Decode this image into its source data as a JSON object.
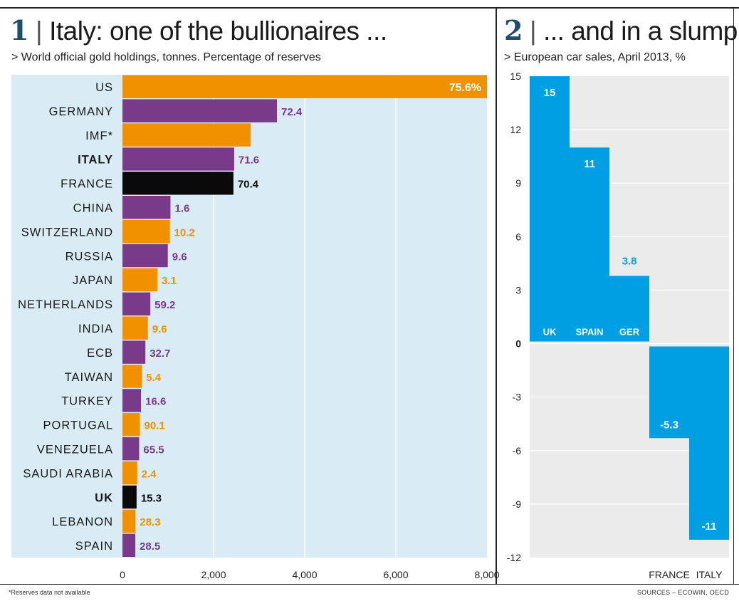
{
  "chart_data": [
    {
      "type": "bar",
      "orientation": "horizontal",
      "number": "1",
      "title": "Italy: one of the bullionaires ...",
      "subtitle": "> World official gold holdings, tonnes. Percentage of reserves",
      "categories": [
        "US",
        "GERMANY",
        "IMF*",
        "ITALY",
        "FRANCE",
        "CHINA",
        "SWITZERLAND",
        "RUSSIA",
        "JAPAN",
        "NETHERLANDS",
        "INDIA",
        "ECB",
        "TAIWAN",
        "TURKEY",
        "PORTUGAL",
        "VENEZUELA",
        "SAUDI ARABIA",
        "UK",
        "LEBANON",
        "SPAIN"
      ],
      "values": [
        8134,
        3391,
        2814,
        2452,
        2435,
        1054,
        1040,
        996,
        765,
        612,
        558,
        503,
        424,
        408,
        383,
        366,
        323,
        310,
        287,
        282
      ],
      "labels": [
        "75.6%",
        "72.4",
        "",
        "71.6",
        "70.4",
        "1.6",
        "10.2",
        "9.6",
        "3.1",
        "59.2",
        "9.6",
        "32.7",
        "5.4",
        "16.6",
        "90.1",
        "65.5",
        "2.4",
        "15.3",
        "28.3",
        "28.5"
      ],
      "highlight": [
        "ITALY",
        "UK"
      ],
      "colors": [
        "orange",
        "purple",
        "orange",
        "purple",
        "black",
        "purple",
        "orange",
        "purple",
        "orange",
        "purple",
        "orange",
        "purple",
        "orange",
        "purple",
        "orange",
        "purple",
        "orange",
        "black",
        "orange",
        "purple"
      ],
      "xticks": [
        "0",
        "2,000",
        "4,000",
        "6,000",
        "8,000"
      ],
      "xlim": [
        0,
        8000
      ],
      "palette": {
        "orange": "#f29100",
        "purple": "#7a3a8a",
        "black": "#0a0a0a",
        "bg": "#d9ebf5"
      }
    },
    {
      "type": "bar",
      "orientation": "vertical",
      "number": "2",
      "title": "... and in a slump",
      "subtitle": "> European car sales, April 2013, %",
      "categories": [
        "UK",
        "SPAIN",
        "GER",
        "FRANCE",
        "ITALY"
      ],
      "values": [
        15,
        11,
        3.8,
        -5.3,
        -11
      ],
      "labels": [
        "15",
        "11",
        "3.8",
        "-5.3",
        "-11"
      ],
      "yticks": [
        "15",
        "12",
        "9",
        "6",
        "3",
        "0",
        "-3",
        "-6",
        "-9",
        "-12"
      ],
      "ylim": [
        -12,
        15
      ],
      "bar_color": "#009fe3",
      "bg": "#ebebeb"
    }
  ],
  "footnote": "*Reserves data not available",
  "sources": "SOURCES – ECOWIN, OECD"
}
